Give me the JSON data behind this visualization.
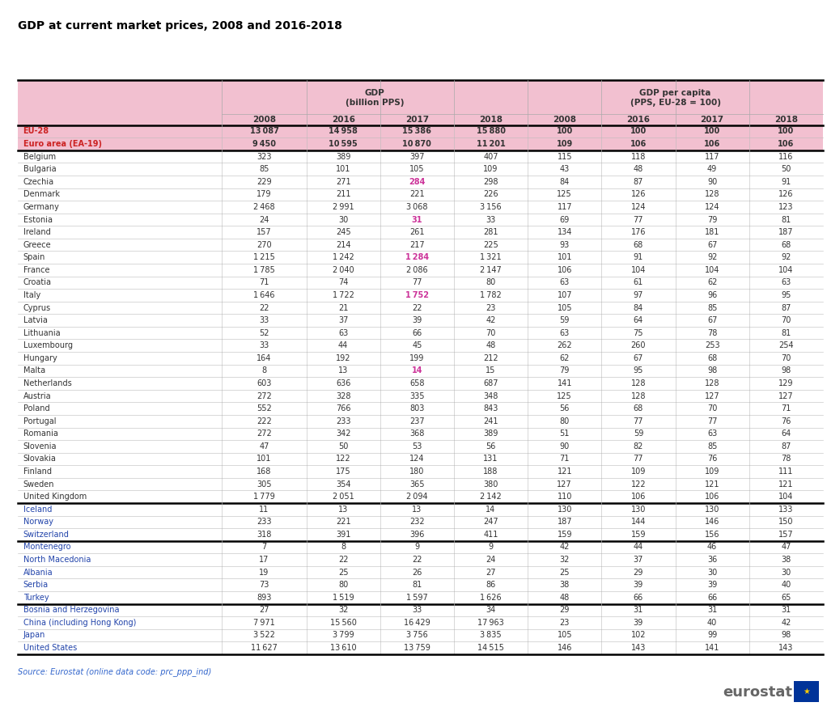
{
  "title": "GDP at current market prices, 2008 and 2016-2018",
  "source": "Source: Eurostat (online data code: prc_ppp_ind)",
  "rows": [
    {
      "name": "EU-28",
      "gdp": [
        13087,
        14958,
        15386,
        15880
      ],
      "pc": [
        100,
        100,
        100,
        100
      ],
      "style": "eu28"
    },
    {
      "name": "Euro area (EA-19)",
      "gdp": [
        9450,
        10595,
        10870,
        11201
      ],
      "pc": [
        109,
        106,
        106,
        106
      ],
      "style": "ea19"
    },
    {
      "name": "Belgium",
      "gdp": [
        323,
        389,
        397,
        407
      ],
      "pc": [
        115,
        118,
        117,
        116
      ],
      "style": "normal"
    },
    {
      "name": "Bulgaria",
      "gdp": [
        85,
        101,
        105,
        109
      ],
      "pc": [
        43,
        48,
        49,
        50
      ],
      "style": "normal"
    },
    {
      "name": "Czechia",
      "gdp": [
        229,
        271,
        284,
        298
      ],
      "pc": [
        84,
        87,
        90,
        91
      ],
      "style": "normal"
    },
    {
      "name": "Denmark",
      "gdp": [
        179,
        211,
        221,
        226
      ],
      "pc": [
        125,
        126,
        128,
        126
      ],
      "style": "normal"
    },
    {
      "name": "Germany",
      "gdp": [
        2468,
        2991,
        3068,
        3156
      ],
      "pc": [
        117,
        124,
        124,
        123
      ],
      "style": "normal"
    },
    {
      "name": "Estonia",
      "gdp": [
        24,
        30,
        31,
        33
      ],
      "pc": [
        69,
        77,
        79,
        81
      ],
      "style": "normal"
    },
    {
      "name": "Ireland",
      "gdp": [
        157,
        245,
        261,
        281
      ],
      "pc": [
        134,
        176,
        181,
        187
      ],
      "style": "normal"
    },
    {
      "name": "Greece",
      "gdp": [
        270,
        214,
        217,
        225
      ],
      "pc": [
        93,
        68,
        67,
        68
      ],
      "style": "normal"
    },
    {
      "name": "Spain",
      "gdp": [
        1215,
        1242,
        1284,
        1321
      ],
      "pc": [
        101,
        91,
        92,
        92
      ],
      "style": "normal"
    },
    {
      "name": "France",
      "gdp": [
        1785,
        2040,
        2086,
        2147
      ],
      "pc": [
        106,
        104,
        104,
        104
      ],
      "style": "normal"
    },
    {
      "name": "Croatia",
      "gdp": [
        71,
        74,
        77,
        80
      ],
      "pc": [
        63,
        61,
        62,
        63
      ],
      "style": "normal"
    },
    {
      "name": "Italy",
      "gdp": [
        1646,
        1722,
        1752,
        1782
      ],
      "pc": [
        107,
        97,
        96,
        95
      ],
      "style": "normal"
    },
    {
      "name": "Cyprus",
      "gdp": [
        22,
        21,
        22,
        23
      ],
      "pc": [
        105,
        84,
        85,
        87
      ],
      "style": "normal"
    },
    {
      "name": "Latvia",
      "gdp": [
        33,
        37,
        39,
        42
      ],
      "pc": [
        59,
        64,
        67,
        70
      ],
      "style": "normal"
    },
    {
      "name": "Lithuania",
      "gdp": [
        52,
        63,
        66,
        70
      ],
      "pc": [
        63,
        75,
        78,
        81
      ],
      "style": "normal"
    },
    {
      "name": "Luxembourg",
      "gdp": [
        33,
        44,
        45,
        48
      ],
      "pc": [
        262,
        260,
        253,
        254
      ],
      "style": "normal"
    },
    {
      "name": "Hungary",
      "gdp": [
        164,
        192,
        199,
        212
      ],
      "pc": [
        62,
        67,
        68,
        70
      ],
      "style": "normal"
    },
    {
      "name": "Malta",
      "gdp": [
        8,
        13,
        14,
        15
      ],
      "pc": [
        79,
        95,
        98,
        98
      ],
      "style": "normal"
    },
    {
      "name": "Netherlands",
      "gdp": [
        603,
        636,
        658,
        687
      ],
      "pc": [
        141,
        128,
        128,
        129
      ],
      "style": "normal"
    },
    {
      "name": "Austria",
      "gdp": [
        272,
        328,
        335,
        348
      ],
      "pc": [
        125,
        128,
        127,
        127
      ],
      "style": "normal"
    },
    {
      "name": "Poland",
      "gdp": [
        552,
        766,
        803,
        843
      ],
      "pc": [
        56,
        68,
        70,
        71
      ],
      "style": "normal"
    },
    {
      "name": "Portugal",
      "gdp": [
        222,
        233,
        237,
        241
      ],
      "pc": [
        80,
        77,
        77,
        76
      ],
      "style": "normal"
    },
    {
      "name": "Romania",
      "gdp": [
        272,
        342,
        368,
        389
      ],
      "pc": [
        51,
        59,
        63,
        64
      ],
      "style": "normal"
    },
    {
      "name": "Slovenia",
      "gdp": [
        47,
        50,
        53,
        56
      ],
      "pc": [
        90,
        82,
        85,
        87
      ],
      "style": "normal"
    },
    {
      "name": "Slovakia",
      "gdp": [
        101,
        122,
        124,
        131
      ],
      "pc": [
        71,
        77,
        76,
        78
      ],
      "style": "normal"
    },
    {
      "name": "Finland",
      "gdp": [
        168,
        175,
        180,
        188
      ],
      "pc": [
        121,
        109,
        109,
        111
      ],
      "style": "normal"
    },
    {
      "name": "Sweden",
      "gdp": [
        305,
        354,
        365,
        380
      ],
      "pc": [
        127,
        122,
        121,
        121
      ],
      "style": "normal"
    },
    {
      "name": "United Kingdom",
      "gdp": [
        1779,
        2051,
        2094,
        2142
      ],
      "pc": [
        110,
        106,
        106,
        104
      ],
      "style": "normal"
    },
    {
      "name": "Iceland",
      "gdp": [
        11,
        13,
        13,
        14
      ],
      "pc": [
        130,
        130,
        130,
        133
      ],
      "style": "efta"
    },
    {
      "name": "Norway",
      "gdp": [
        233,
        221,
        232,
        247
      ],
      "pc": [
        187,
        144,
        146,
        150
      ],
      "style": "efta"
    },
    {
      "name": "Switzerland",
      "gdp": [
        318,
        391,
        396,
        411
      ],
      "pc": [
        159,
        159,
        156,
        157
      ],
      "style": "efta"
    },
    {
      "name": "Montenegro",
      "gdp": [
        7,
        8,
        9,
        9
      ],
      "pc": [
        42,
        44,
        46,
        47
      ],
      "style": "candidate"
    },
    {
      "name": "North Macedonia",
      "gdp": [
        17,
        22,
        22,
        24
      ],
      "pc": [
        32,
        37,
        36,
        38
      ],
      "style": "candidate"
    },
    {
      "name": "Albania",
      "gdp": [
        19,
        25,
        26,
        27
      ],
      "pc": [
        25,
        29,
        30,
        30
      ],
      "style": "candidate"
    },
    {
      "name": "Serbia",
      "gdp": [
        73,
        80,
        81,
        86
      ],
      "pc": [
        38,
        39,
        39,
        40
      ],
      "style": "candidate"
    },
    {
      "name": "Turkey",
      "gdp": [
        893,
        1519,
        1597,
        1626
      ],
      "pc": [
        48,
        66,
        66,
        65
      ],
      "style": "candidate"
    },
    {
      "name": "Bosnia and Herzegovina",
      "gdp": [
        27,
        32,
        33,
        34
      ],
      "pc": [
        29,
        31,
        31,
        31
      ],
      "style": "other"
    },
    {
      "name": "China (including Hong Kong)",
      "gdp": [
        7971,
        15560,
        16429,
        17963
      ],
      "pc": [
        23,
        39,
        40,
        42
      ],
      "style": "other"
    },
    {
      "name": "Japan",
      "gdp": [
        3522,
        3799,
        3756,
        3835
      ],
      "pc": [
        105,
        102,
        99,
        98
      ],
      "style": "other"
    },
    {
      "name": "United States",
      "gdp": [
        11627,
        13610,
        13759,
        14515
      ],
      "pc": [
        146,
        143,
        141,
        143
      ],
      "style": "other"
    }
  ],
  "colors": {
    "header_bg": "#f2c0d0",
    "eu28_bg": "#f2c0d0",
    "ea19_bg": "#f2c0d0",
    "text_dark": "#333333",
    "text_pink": "#cc3399",
    "text_red": "#cc2222",
    "text_blue": "#2244aa",
    "title_color": "#000000",
    "source_color": "#3366cc"
  },
  "separators_after": [
    "Euro area (EA-19)",
    "United Kingdom",
    "Switzerland",
    "Turkey"
  ],
  "bold_rows": [
    "EU-28",
    "Euro area (EA-19)"
  ],
  "pink_cells": [
    [
      "Czechia",
      2
    ],
    [
      "Estonia",
      2
    ],
    [
      "Spain",
      2
    ],
    [
      "Italy",
      2
    ],
    [
      "Malta",
      2
    ]
  ]
}
